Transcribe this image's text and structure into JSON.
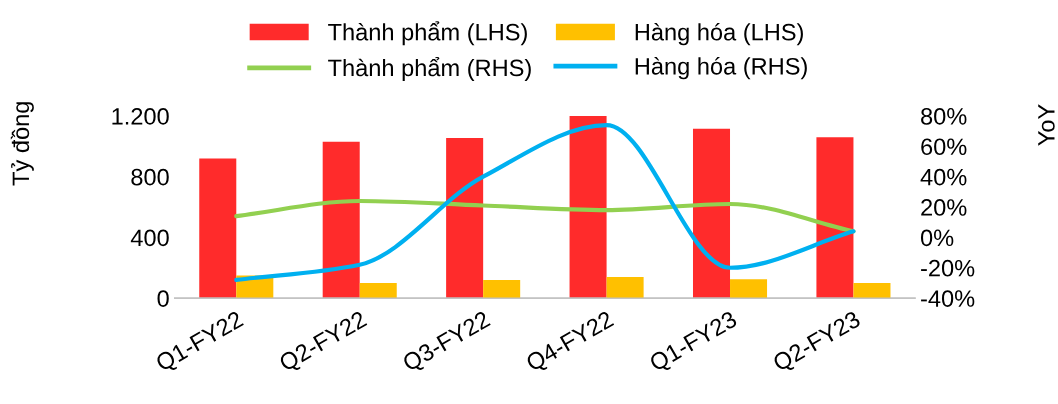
{
  "chart_data": {
    "type": "bar",
    "categories": [
      "Q1-FY22",
      "Q2-FY22",
      "Q3-FY22",
      "Q4-FY22",
      "Q1-FY23",
      "Q2-FY23"
    ],
    "ylabel": "Tỷ đồng",
    "y2label": "YoY",
    "series": [
      {
        "name": "Thành phẩm (LHS)",
        "color": "#ff2b2b",
        "values": [
          920,
          1030,
          1055,
          1200,
          1115,
          1060
        ]
      },
      {
        "name": "Hàng hóa (LHS)",
        "color": "#ffc000",
        "values": [
          150,
          100,
          120,
          140,
          125,
          100
        ]
      },
      {
        "name": "Thành phẩm (RHS)",
        "type": "line",
        "axis": "y2",
        "color": "#92d050",
        "values": [
          14,
          24,
          21,
          18,
          22,
          4
        ]
      },
      {
        "name": "Hàng hóa (RHS)",
        "type": "line",
        "axis": "y2",
        "color": "#00b0f0",
        "values": [
          -28,
          -18,
          40,
          74,
          -20,
          4
        ]
      }
    ],
    "ylim": [
      0,
      1200
    ],
    "yticks": [
      0,
      400,
      800,
      {
        "value": 1200,
        "label": "1.200"
      }
    ],
    "y2lim": [
      -40,
      80
    ],
    "y2ticks": [
      {
        "value": -40,
        "label": "-40%"
      },
      {
        "value": -20,
        "label": "-20%"
      },
      {
        "value": 0,
        "label": "0%"
      },
      {
        "value": 20,
        "label": "20%"
      },
      {
        "value": 40,
        "label": "40%"
      },
      {
        "value": 60,
        "label": "60%"
      },
      {
        "value": 80,
        "label": "80%"
      }
    ],
    "legend": "top",
    "grid": false
  }
}
